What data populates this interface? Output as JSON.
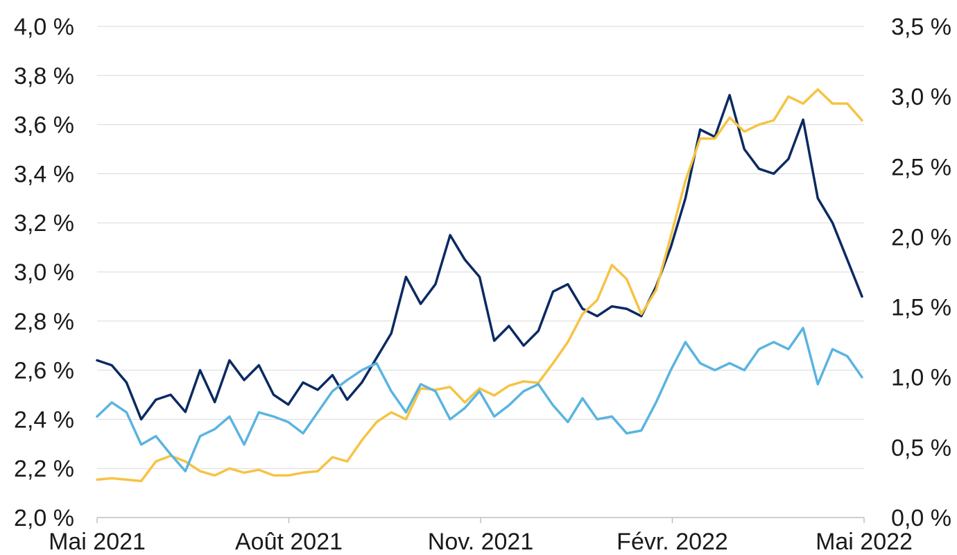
{
  "chart_data": {
    "type": "line",
    "x_ticks": [
      "Mai 2021",
      "Août 2021",
      "Nov. 2021",
      "Févr. 2022",
      "Mai 2022"
    ],
    "y_left": {
      "ticks": [
        "2,0 %",
        "2,2 %",
        "2,4 %",
        "2,6 %",
        "2,8 %",
        "3,0 %",
        "3,2 %",
        "3,4 %",
        "3,6 %",
        "3,8 %",
        "4,0 %"
      ],
      "range": [
        2.0,
        4.0
      ]
    },
    "y_right": {
      "ticks": [
        "0,0 %",
        "0,5 %",
        "1,0 %",
        "1,5 %",
        "2,0 %",
        "2,5 %",
        "3,0 %",
        "3,5 %"
      ],
      "range": [
        0.0,
        3.5
      ]
    },
    "x_range": [
      "2021-05-01",
      "2022-05-01"
    ],
    "grid": "horizontal",
    "legend": "none",
    "series": [
      {
        "axis": "left",
        "color": "#0b2a62",
        "x": [
          "2021-05-01",
          "2021-05-08",
          "2021-05-15",
          "2021-05-22",
          "2021-05-29",
          "2021-06-05",
          "2021-06-12",
          "2021-06-19",
          "2021-06-26",
          "2021-07-03",
          "2021-07-10",
          "2021-07-17",
          "2021-07-24",
          "2021-07-31",
          "2021-08-07",
          "2021-08-14",
          "2021-08-21",
          "2021-08-28",
          "2021-09-04",
          "2021-09-11",
          "2021-09-18",
          "2021-09-25",
          "2021-10-02",
          "2021-10-09",
          "2021-10-16",
          "2021-10-23",
          "2021-10-30",
          "2021-11-06",
          "2021-11-13",
          "2021-11-20",
          "2021-11-27",
          "2021-12-04",
          "2021-12-11",
          "2021-12-18",
          "2021-12-25",
          "2022-01-01",
          "2022-01-08",
          "2022-01-15",
          "2022-01-22",
          "2022-01-29",
          "2022-02-05",
          "2022-02-12",
          "2022-02-19",
          "2022-02-26",
          "2022-03-05",
          "2022-03-12",
          "2022-03-19",
          "2022-03-26",
          "2022-04-02",
          "2022-04-09",
          "2022-04-16",
          "2022-04-23",
          "2022-04-30"
        ],
        "values": [
          2.64,
          2.62,
          2.55,
          2.4,
          2.48,
          2.5,
          2.43,
          2.6,
          2.47,
          2.64,
          2.56,
          2.62,
          2.5,
          2.46,
          2.55,
          2.52,
          2.58,
          2.48,
          2.55,
          2.65,
          2.75,
          2.98,
          2.87,
          2.95,
          3.15,
          3.05,
          2.98,
          2.72,
          2.78,
          2.7,
          2.76,
          2.92,
          2.95,
          2.85,
          2.82,
          2.86,
          2.85,
          2.82,
          2.94,
          3.1,
          3.3,
          3.58,
          3.55,
          3.72,
          3.5,
          3.42,
          3.4,
          3.46,
          3.62,
          3.3,
          3.2,
          3.05,
          2.9
        ]
      },
      {
        "axis": "right",
        "color": "#f6c343",
        "x": [
          "2021-05-01",
          "2021-05-08",
          "2021-05-15",
          "2021-05-22",
          "2021-05-29",
          "2021-06-05",
          "2021-06-12",
          "2021-06-19",
          "2021-06-26",
          "2021-07-03",
          "2021-07-10",
          "2021-07-17",
          "2021-07-24",
          "2021-07-31",
          "2021-08-07",
          "2021-08-14",
          "2021-08-21",
          "2021-08-28",
          "2021-09-04",
          "2021-09-11",
          "2021-09-18",
          "2021-09-25",
          "2021-10-02",
          "2021-10-09",
          "2021-10-16",
          "2021-10-23",
          "2021-10-30",
          "2021-11-06",
          "2021-11-13",
          "2021-11-20",
          "2021-11-27",
          "2021-12-04",
          "2021-12-11",
          "2021-12-18",
          "2021-12-25",
          "2022-01-01",
          "2022-01-08",
          "2022-01-15",
          "2022-01-22",
          "2022-01-29",
          "2022-02-05",
          "2022-02-12",
          "2022-02-19",
          "2022-02-26",
          "2022-03-05",
          "2022-03-12",
          "2022-03-19",
          "2022-03-26",
          "2022-04-02",
          "2022-04-09",
          "2022-04-16",
          "2022-04-23",
          "2022-04-30"
        ],
        "values": [
          0.27,
          0.28,
          0.27,
          0.26,
          0.4,
          0.44,
          0.4,
          0.33,
          0.3,
          0.35,
          0.32,
          0.34,
          0.3,
          0.3,
          0.32,
          0.33,
          0.43,
          0.4,
          0.55,
          0.68,
          0.75,
          0.7,
          0.92,
          0.91,
          0.93,
          0.82,
          0.92,
          0.87,
          0.94,
          0.97,
          0.96,
          1.1,
          1.25,
          1.45,
          1.55,
          1.8,
          1.7,
          1.45,
          1.62,
          2.0,
          2.4,
          2.7,
          2.7,
          2.85,
          2.75,
          2.8,
          2.83,
          3.0,
          2.95,
          3.05,
          2.95,
          2.95,
          2.83
        ]
      },
      {
        "axis": "right",
        "color": "#5ab4e0",
        "x": [
          "2021-05-01",
          "2021-05-08",
          "2021-05-15",
          "2021-05-22",
          "2021-05-29",
          "2021-06-05",
          "2021-06-12",
          "2021-06-19",
          "2021-06-26",
          "2021-07-03",
          "2021-07-10",
          "2021-07-17",
          "2021-07-24",
          "2021-07-31",
          "2021-08-07",
          "2021-08-14",
          "2021-08-21",
          "2021-08-28",
          "2021-09-04",
          "2021-09-11",
          "2021-09-18",
          "2021-09-25",
          "2021-10-02",
          "2021-10-09",
          "2021-10-16",
          "2021-10-23",
          "2021-10-30",
          "2021-11-06",
          "2021-11-13",
          "2021-11-20",
          "2021-11-27",
          "2021-12-04",
          "2021-12-11",
          "2021-12-18",
          "2021-12-25",
          "2022-01-01",
          "2022-01-08",
          "2022-01-15",
          "2022-01-22",
          "2022-01-29",
          "2022-02-05",
          "2022-02-12",
          "2022-02-19",
          "2022-02-26",
          "2022-03-05",
          "2022-03-12",
          "2022-03-19",
          "2022-03-26",
          "2022-04-02",
          "2022-04-09",
          "2022-04-16",
          "2022-04-23",
          "2022-04-30"
        ],
        "values": [
          0.72,
          0.82,
          0.75,
          0.52,
          0.58,
          0.45,
          0.33,
          0.58,
          0.63,
          0.72,
          0.52,
          0.75,
          0.72,
          0.68,
          0.6,
          0.75,
          0.9,
          0.98,
          1.05,
          1.1,
          0.9,
          0.75,
          0.95,
          0.9,
          0.7,
          0.78,
          0.9,
          0.72,
          0.8,
          0.9,
          0.95,
          0.8,
          0.68,
          0.85,
          0.7,
          0.72,
          0.6,
          0.62,
          0.82,
          1.05,
          1.25,
          1.1,
          1.05,
          1.1,
          1.05,
          1.2,
          1.25,
          1.2,
          1.35,
          0.95,
          1.2,
          1.15,
          1.0
        ]
      }
    ]
  }
}
